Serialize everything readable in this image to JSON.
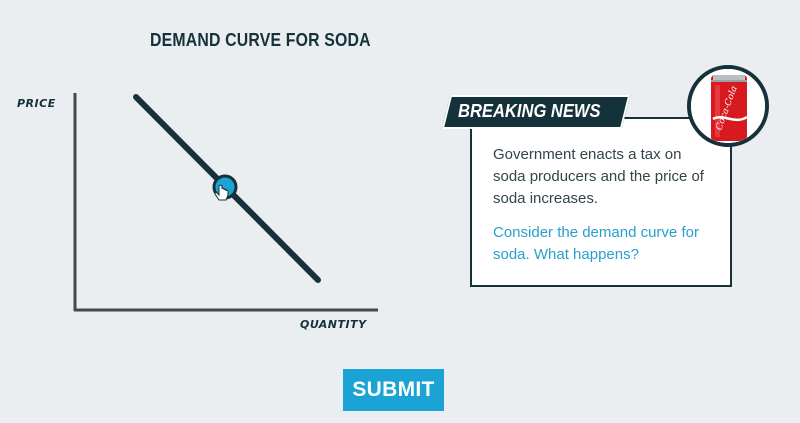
{
  "chart": {
    "title": "DEMAND CURVE FOR SODA",
    "y_axis_label": "PRICE",
    "x_axis_label": "QUANTITY"
  },
  "news": {
    "banner": "BREAKING NEWS",
    "body": "Government enacts a tax on soda producers and the price of soda increases.",
    "prompt": "Consider the demand curve for soda. What happens?",
    "can_brand": "Coca-Cola"
  },
  "actions": {
    "submit_label": "SUBMIT"
  },
  "colors": {
    "navy": "#15313a",
    "accent_blue": "#1aa3d4",
    "prompt_blue": "#2a9fcf",
    "background": "#eaeef0",
    "can_red": "#d71920"
  },
  "icons": {
    "drag_handle": "circle-handle-icon",
    "cursor": "hand-pointer-icon",
    "can": "soda-can-icon"
  }
}
